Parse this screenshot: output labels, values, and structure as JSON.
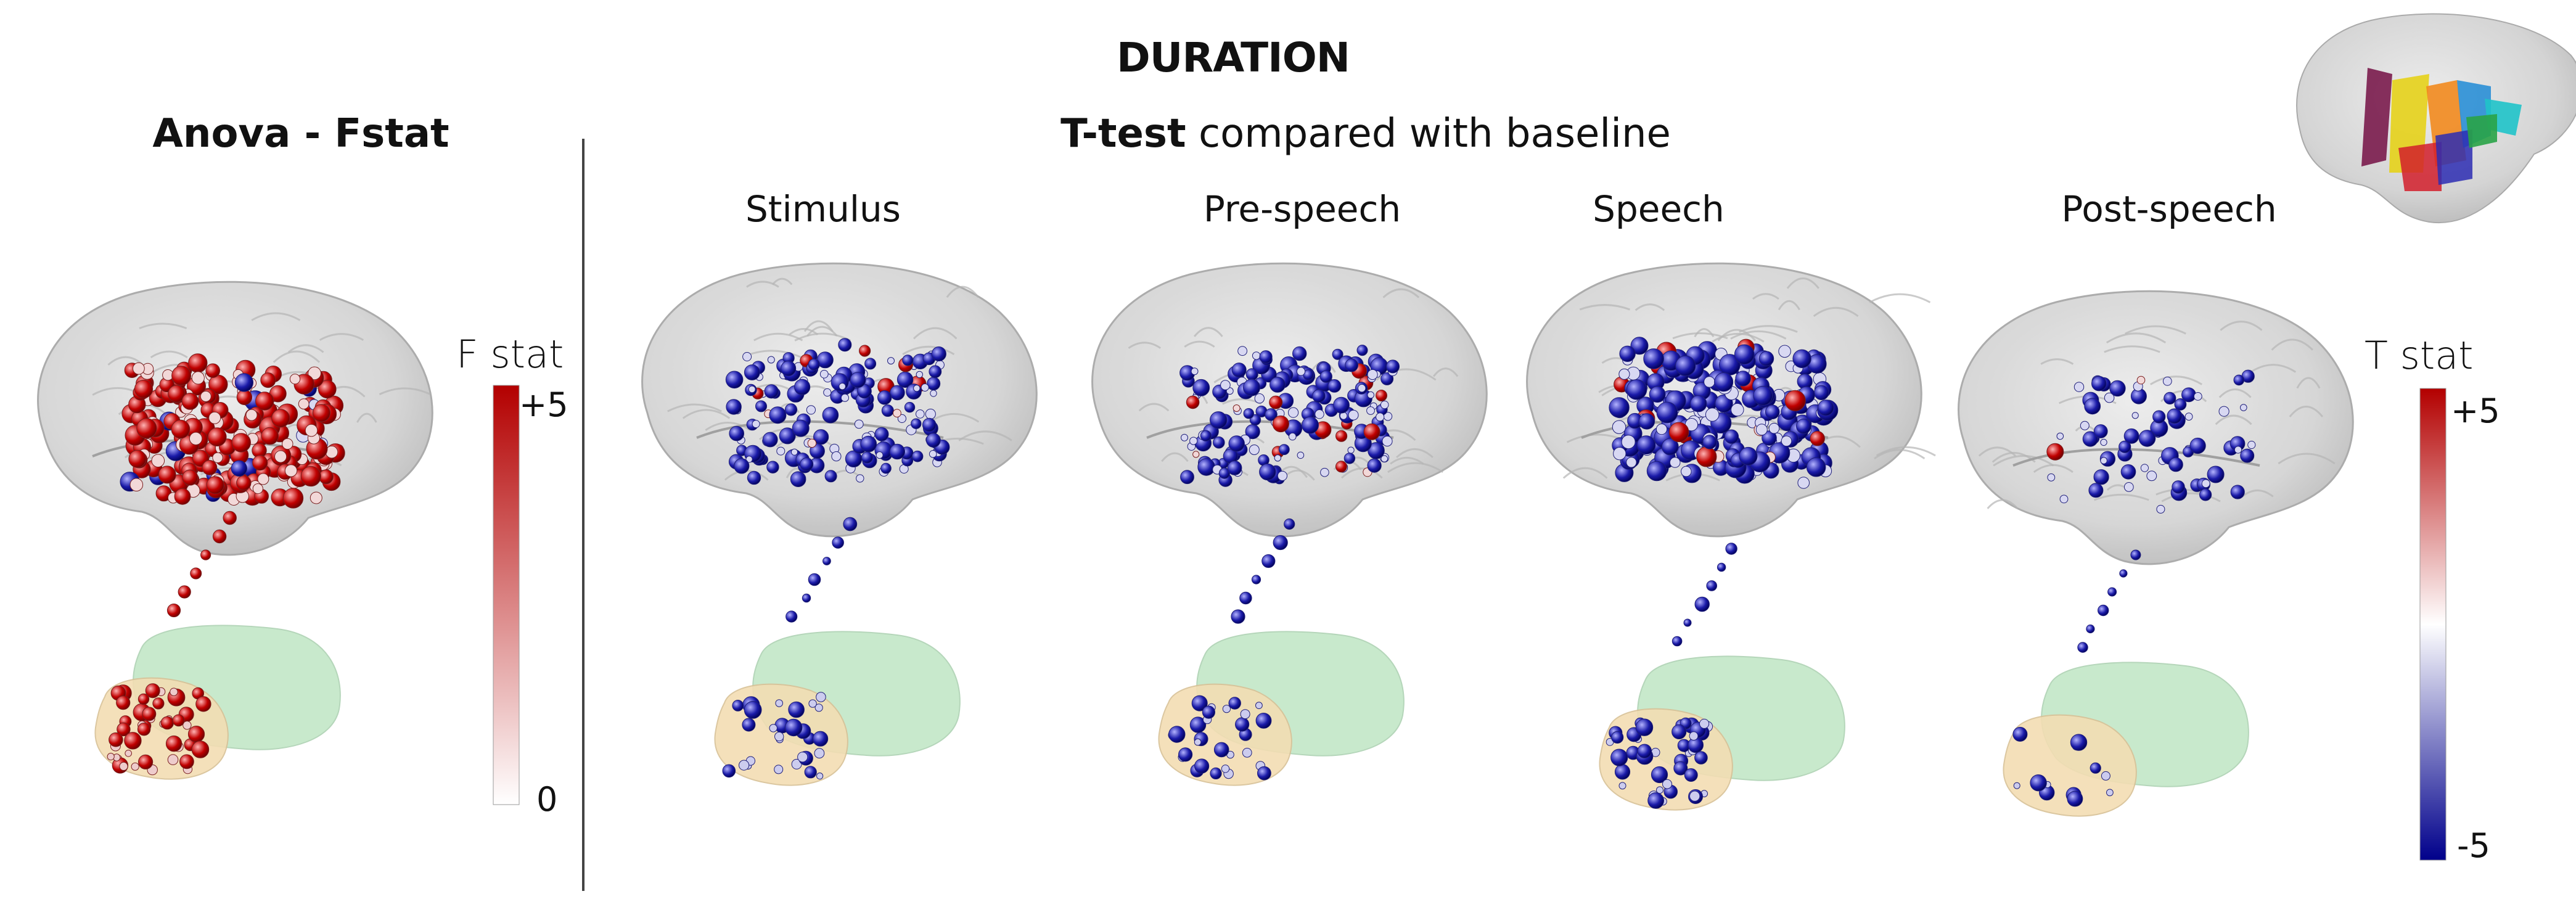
{
  "header": {
    "title": "DURATION",
    "anova_title": "Anova - Fstat",
    "ttest_bold": "T-test",
    "ttest_rest": " compared with baseline"
  },
  "conditions": [
    "Stimulus",
    "Pre-speech",
    "Speech",
    "Post-speech"
  ],
  "colorbars": {
    "fstat": {
      "label": "F stat",
      "max": "+5",
      "min": "0",
      "colors": [
        "#ffffff",
        "#b30000"
      ]
    },
    "tstat": {
      "label": "T stat",
      "max": "+5",
      "min": "-5",
      "colors": [
        "#b30000",
        "#ffffff",
        "#00008b"
      ]
    }
  },
  "colors": {
    "brain": "#d6d6d6",
    "thalamus_region": "#bfe6c4",
    "cerebellum_region": "#f3ddb3",
    "positive": "#b30000",
    "negative": "#0b0b8f"
  },
  "panels": [
    {
      "id": "anova",
      "dominant_sign": "positive",
      "density": "high"
    },
    {
      "id": "stimulus",
      "dominant_sign": "negative",
      "density": "medium"
    },
    {
      "id": "pre-speech",
      "dominant_sign": "negative",
      "density": "medium"
    },
    {
      "id": "speech",
      "dominant_sign": "negative",
      "density": "high"
    },
    {
      "id": "post-speech",
      "dominant_sign": "negative",
      "density": "low"
    }
  ]
}
